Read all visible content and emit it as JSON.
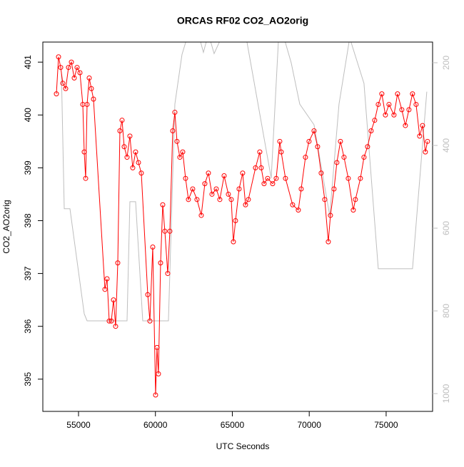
{
  "chart_data": {
    "type": "line",
    "title": "ORCAS RF02 CO2_AO2orig",
    "xlabel": "UTC Seconds",
    "ylabel": "CO2_AO2orig",
    "xlim": [
      52680,
      78020
    ],
    "ylim": [
      394.39,
      401.38
    ],
    "y2lim": [
      1043,
      150
    ],
    "xticks": [
      55000,
      60000,
      65000,
      70000,
      75000
    ],
    "yticks": [
      395,
      396,
      397,
      398,
      399,
      400,
      401
    ],
    "y2ticks": [
      200,
      400,
      600,
      800,
      1000
    ],
    "series": [
      {
        "color": "#ff0000",
        "marker": "circle",
        "x": [
          53562,
          53701,
          53840,
          53979,
          54165,
          54350,
          54536,
          54722,
          54907,
          55093,
          55278,
          55371,
          55464,
          55557,
          55696,
          55835,
          55974,
          56717,
          56856,
          56995,
          57134,
          57274,
          57413,
          57552,
          57691,
          57830,
          57970,
          58155,
          58341,
          58526,
          58712,
          58898,
          59083,
          59501,
          59640,
          59826,
          60011,
          60104,
          60197,
          60336,
          60475,
          60614,
          60800,
          60939,
          61125,
          61264,
          61403,
          61589,
          61774,
          61960,
          62146,
          62424,
          62702,
          62981,
          63213,
          63445,
          63677,
          63955,
          64187,
          64466,
          64744,
          64930,
          65069,
          65208,
          65440,
          65672,
          65858,
          66043,
          66507,
          66786,
          66878,
          67064,
          67296,
          67621,
          67853,
          68085,
          68178,
          68456,
          68920,
          69291,
          69477,
          69755,
          69987,
          70312,
          70544,
          70776,
          71008,
          71240,
          71379,
          71611,
          71797,
          72029,
          72261,
          72539,
          72864,
          73003,
          73328,
          73560,
          73792,
          74024,
          74256,
          74488,
          74720,
          74952,
          75184,
          75509,
          75741,
          76019,
          76251,
          76483,
          76715,
          76947,
          77179,
          77365,
          77550,
          77690
        ],
        "values": [
          400.4,
          401.1,
          400.9,
          400.6,
          400.5,
          400.9,
          401.0,
          400.7,
          400.9,
          400.8,
          400.2,
          399.3,
          398.8,
          400.2,
          400.7,
          400.5,
          400.3,
          396.7,
          396.9,
          396.1,
          396.1,
          396.5,
          396.0,
          397.2,
          399.7,
          399.9,
          399.4,
          399.2,
          399.6,
          399.0,
          399.3,
          399.1,
          398.9,
          396.6,
          396.1,
          397.5,
          394.7,
          395.6,
          395.1,
          397.2,
          398.3,
          397.8,
          397.0,
          397.8,
          399.7,
          400.05,
          399.5,
          399.2,
          399.3,
          398.8,
          398.4,
          398.6,
          398.4,
          398.1,
          398.7,
          398.9,
          398.5,
          398.6,
          398.4,
          398.85,
          398.5,
          398.4,
          397.6,
          398.0,
          398.6,
          398.9,
          398.3,
          398.4,
          399.0,
          399.3,
          399.0,
          398.7,
          398.8,
          398.7,
          398.8,
          399.5,
          399.3,
          398.8,
          398.3,
          398.2,
          398.6,
          399.2,
          399.5,
          399.7,
          399.4,
          398.9,
          398.4,
          397.6,
          398.1,
          398.6,
          399.1,
          399.5,
          399.2,
          398.8,
          398.2,
          398.4,
          398.8,
          399.2,
          399.4,
          399.7,
          399.9,
          400.2,
          400.4,
          400.0,
          400.2,
          400.0,
          400.4,
          400.1,
          399.8,
          400.1,
          400.4,
          400.2,
          399.6,
          399.8,
          399.3,
          399.5
        ]
      },
      {
        "color": "#bebebe",
        "axis": "y2",
        "x": [
          53886,
          54072,
          54443,
          55371,
          55557,
          58155,
          58341,
          58712,
          59176,
          60846,
          61264,
          61728,
          62053,
          62795,
          63120,
          63445,
          63816,
          64280,
          64744,
          65904,
          67528,
          67992,
          68363,
          68827,
          69384,
          70312,
          71333,
          71936,
          72632,
          73560,
          74488,
          76715,
          77643
        ],
        "values": [
          221,
          553,
          553,
          807,
          824,
          824,
          536,
          536,
          824,
          824,
          300,
          180,
          140,
          130,
          175,
          130,
          178,
          140,
          140,
          140,
          479,
          150,
          140,
          200,
          300,
          350,
          570,
          300,
          140,
          250,
          698,
          698,
          270
        ]
      }
    ]
  }
}
